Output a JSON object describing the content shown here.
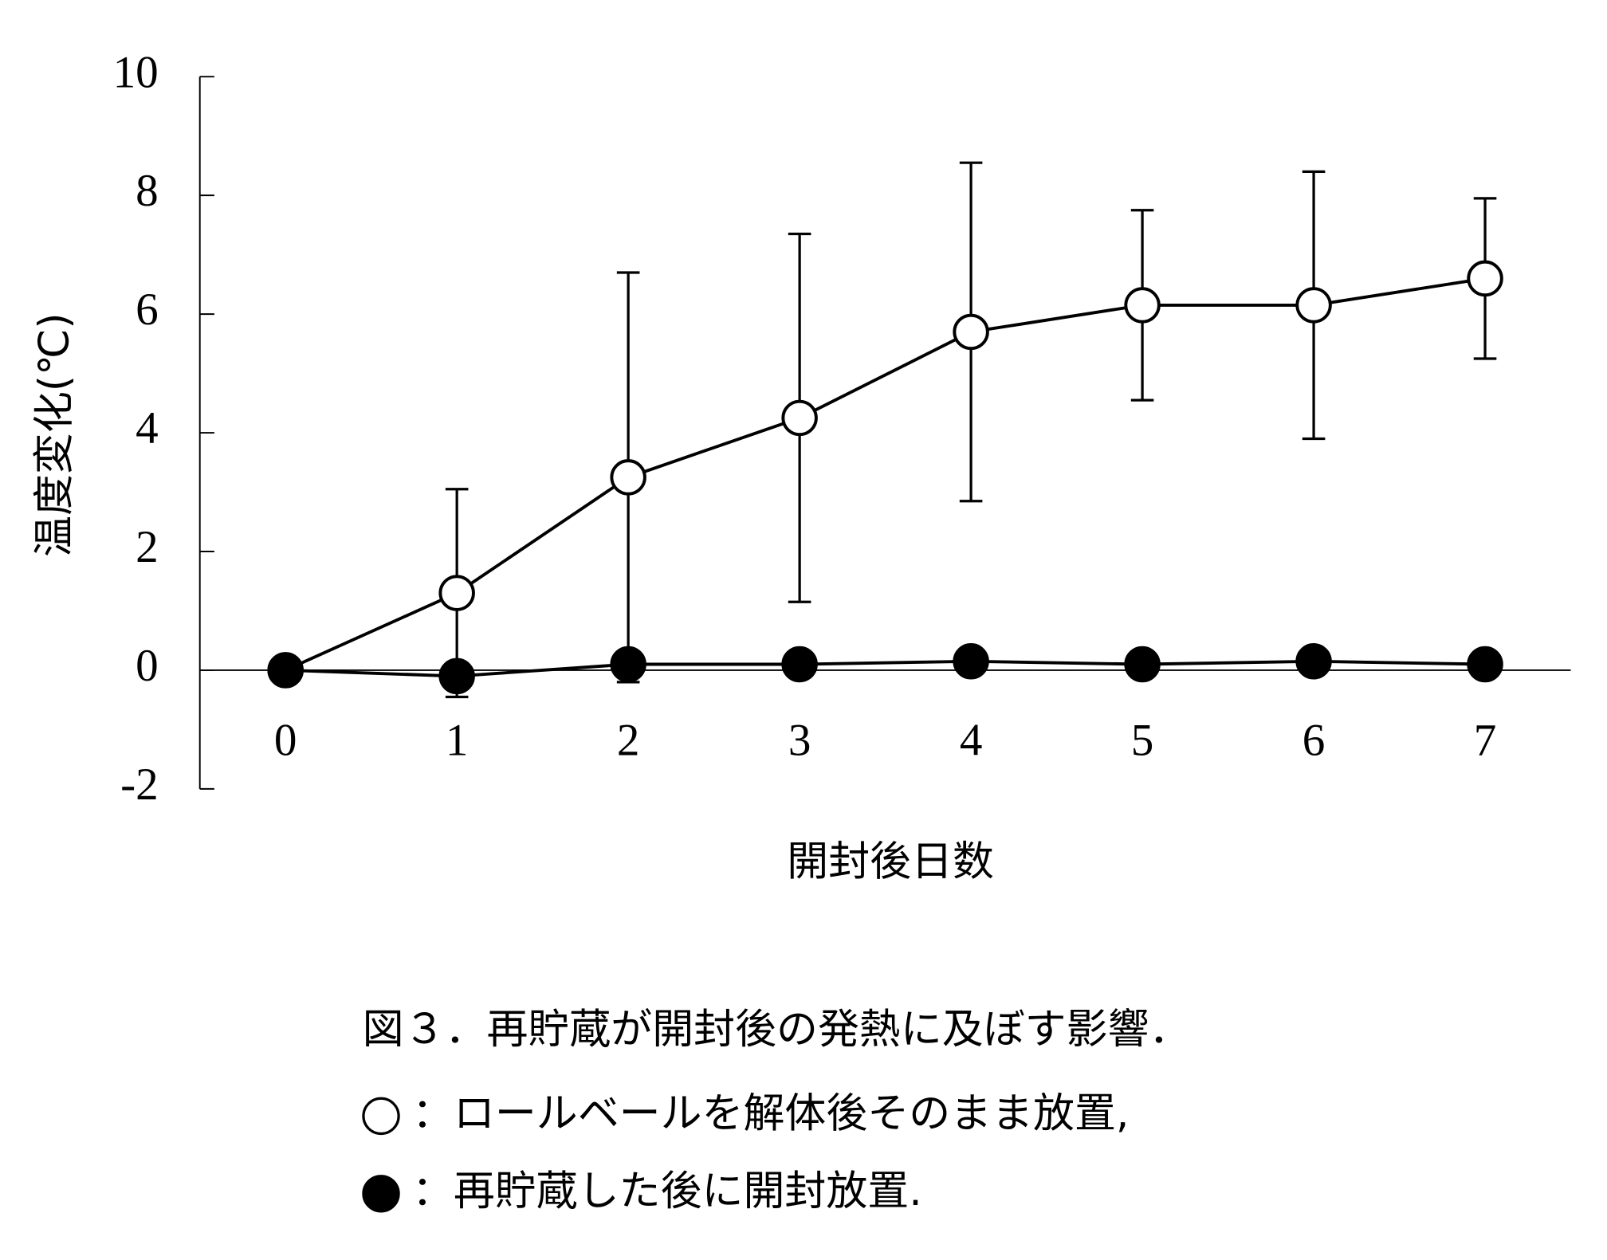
{
  "chart_data": {
    "type": "line",
    "x": [
      0,
      1,
      2,
      3,
      4,
      5,
      6,
      7
    ],
    "xlim": [
      -0.5,
      7.5
    ],
    "xticks": [
      0,
      1,
      2,
      3,
      4,
      5,
      6,
      7
    ],
    "ylim": [
      -2,
      10
    ],
    "yticks": [
      -2,
      0,
      2,
      4,
      6,
      8,
      10
    ],
    "x_label": "開封後日数",
    "y_label": "温度変化(℃)",
    "caption": "図３．再貯蔵が開封後の発熱に及ぼす影響．",
    "series": [
      {
        "name": "：ロールベールを解体後そのまま放置,",
        "color": "#000000",
        "marker": "open",
        "values": [
          0,
          1.3,
          3.25,
          4.25,
          5.7,
          6.15,
          6.15,
          6.6
        ],
        "errors": [
          0,
          1.75,
          3.45,
          3.1,
          2.85,
          1.6,
          2.25,
          1.35
        ]
      },
      {
        "name": "：再貯蔵した後に開封放置.",
        "color": "#000000",
        "marker": "filled",
        "values": [
          0,
          -0.1,
          0.1,
          0.1,
          0.15,
          0.1,
          0.15,
          0.1
        ]
      }
    ]
  }
}
